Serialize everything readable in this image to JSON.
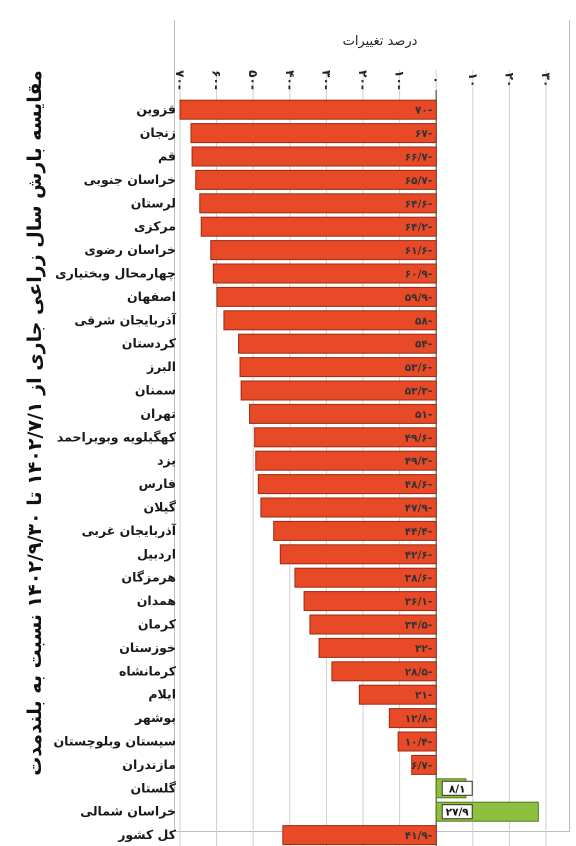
{
  "title": "مقایسه بارش سال زراعی جاری از ۱۴۰۲/۷/۱ تا ۱۴۰۲/۹/۳۰ نسبت به بلندمدت",
  "colors": {
    "negative_bar": "#e84a27",
    "negative_border": "#9c2a10",
    "positive_bar": "#8fbf3f",
    "positive_border": "#4d7a1a",
    "grid": "#cfcfcf",
    "axis": "#555555"
  },
  "chart_data": {
    "type": "bar",
    "orientation": "horizontal",
    "xlabel": "درصد تغییرات",
    "xlim": [
      -70,
      30
    ],
    "x_ticks": [
      -70,
      -60,
      -50,
      -40,
      -30,
      -20,
      -10,
      0,
      10,
      20,
      30
    ],
    "x_tick_labels": [
      "۷۰-",
      "۶۰-",
      "۵۰-",
      "۴۰-",
      "۳۰-",
      "۲۰-",
      "۱۰-",
      "۰",
      "۱۰",
      "۲۰",
      "۳۰"
    ],
    "grid": true,
    "categories": [
      "قزوین",
      "زنجان",
      "قم",
      "خراسان جنوبی",
      "لرستان",
      "مرکزی",
      "خراسان رضوی",
      "چهارمحال وبختیاری",
      "اصفهان",
      "آذربایجان شرقی",
      "کردستان",
      "البرز",
      "سمنان",
      "تهران",
      "کهگیلویه وبویراحمد",
      "یزد",
      "فارس",
      "گیلان",
      "آذربایجان غربی",
      "اردبیل",
      "هرمزگان",
      "همدان",
      "کرمان",
      "خوزستان",
      "کرمانشاه",
      "ایلام",
      "بوشهر",
      "سیستان وبلوچستان",
      "مازندران",
      "گلستان",
      "خراسان شمالی",
      "کل کشور"
    ],
    "values": [
      -70,
      -67,
      -66.7,
      -65.7,
      -64.6,
      -64.2,
      -61.6,
      -60.9,
      -59.9,
      -58,
      -54,
      -53.6,
      -53.3,
      -51,
      -49.6,
      -49.3,
      -48.6,
      -47.9,
      -44.4,
      -42.6,
      -38.6,
      -36.1,
      -34.5,
      -32,
      -28.5,
      -21,
      -12.8,
      -10.4,
      -6.7,
      8.1,
      27.9,
      -41.9
    ],
    "value_labels": [
      "۷۰-",
      "۶۷-",
      "۶۶/۷-",
      "۶۵/۷-",
      "۶۴/۶-",
      "۶۴/۲-",
      "۶۱/۶-",
      "۶۰/۹-",
      "۵۹/۹-",
      "۵۸-",
      "۵۴-",
      "۵۳/۶-",
      "۵۳/۳-",
      "۵۱-",
      "۴۹/۶-",
      "۴۹/۳-",
      "۴۸/۶-",
      "۴۷/۹-",
      "۴۴/۴-",
      "۴۲/۶-",
      "۳۸/۶-",
      "۳۶/۱-",
      "۳۴/۵-",
      "۳۲-",
      "۲۸/۵-",
      "۲۱-",
      "۱۲/۸-",
      "۱۰/۴-",
      "۶/۷-",
      "۸/۱",
      "۲۷/۹",
      "۴۱/۹-"
    ]
  }
}
